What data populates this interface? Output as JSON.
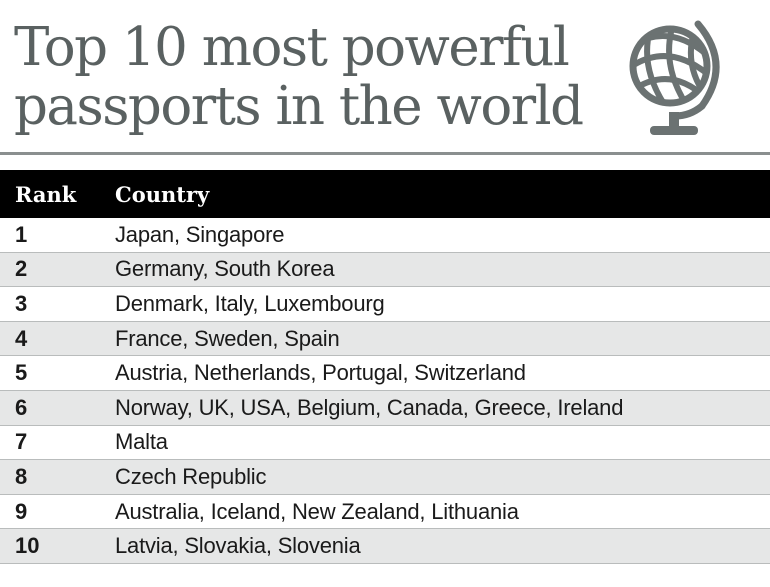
{
  "title": {
    "line1": "Top 10 most powerful",
    "line2": "passports in the world"
  },
  "globe_icon": "globe-icon",
  "columns": {
    "rank": "Rank",
    "country": "Country"
  },
  "rows": [
    {
      "rank": "1",
      "country": "Japan, Singapore"
    },
    {
      "rank": "2",
      "country": "Germany, South Korea"
    },
    {
      "rank": "3",
      "country": "Denmark, Italy, Luxembourg"
    },
    {
      "rank": "4",
      "country": "France, Sweden, Spain"
    },
    {
      "rank": "5",
      "country": "Austria, Netherlands, Portugal, Switzerland"
    },
    {
      "rank": "6",
      "country": "Norway, UK, USA,  Belgium, Canada, Greece, Ireland"
    },
    {
      "rank": "7",
      "country": "Malta"
    },
    {
      "rank": "8",
      "country": "Czech Republic"
    },
    {
      "rank": "9",
      "country": "Australia, Iceland, New Zealand, Lithuania"
    },
    {
      "rank": "10",
      "country": "Latvia, Slovakia, Slovenia"
    }
  ],
  "colors": {
    "title": "#5a6161",
    "header_bg": "#000000",
    "header_text": "#ffffff",
    "stripe": "#e6e7e7",
    "globe": "#6b7272"
  }
}
